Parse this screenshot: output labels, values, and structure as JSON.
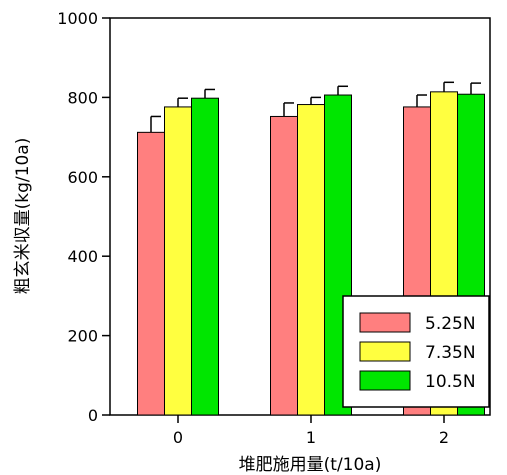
{
  "chart_data": {
    "type": "bar",
    "title": "",
    "xlabel": "堆肥施用量(t/10a)",
    "ylabel": "粗玄米収量(kg/10a)",
    "categories": [
      "0",
      "1",
      "2"
    ],
    "ylim": [
      0,
      1000
    ],
    "yticks": [
      "0",
      "200",
      "400",
      "600",
      "800",
      "1000"
    ],
    "grid": false,
    "legend_position": "bottom-right",
    "series": [
      {
        "name": "5.25N",
        "color": "#FF7F7F",
        "values": [
          712,
          752,
          776
        ],
        "errors": [
          40,
          34,
          30
        ]
      },
      {
        "name": "7.35N",
        "color": "#FFFF40",
        "values": [
          776,
          782,
          814
        ],
        "errors": [
          22,
          18,
          24
        ]
      },
      {
        "name": "10.5N",
        "color": "#00E600",
        "values": [
          798,
          806,
          808
        ],
        "errors": [
          22,
          22,
          28
        ]
      }
    ]
  }
}
